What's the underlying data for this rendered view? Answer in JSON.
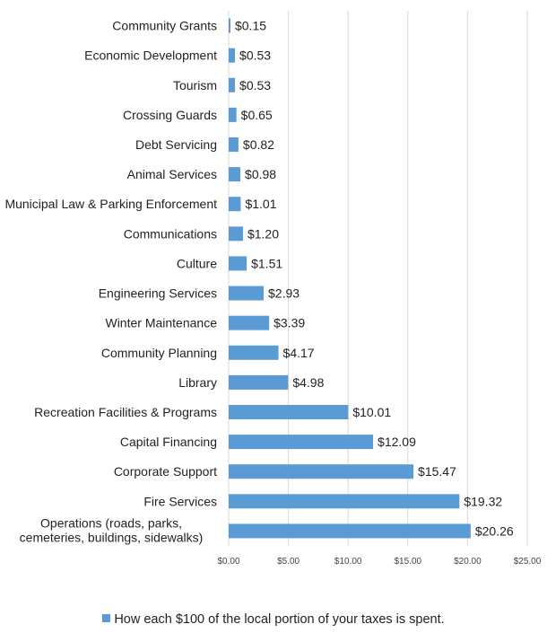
{
  "chart_data": {
    "type": "bar",
    "orientation": "horizontal",
    "categories": [
      "Community Grants",
      "Economic Development",
      "Tourism",
      "Crossing Guards",
      "Debt Servicing",
      "Animal Services",
      "Municipal Law & Parking Enforcement",
      "Communications",
      "Culture",
      "Engineering Services",
      "Winter Maintenance",
      "Community Planning",
      "Library",
      "Recreation Facilities & Programs",
      "Capital Financing",
      "Corporate Support",
      "Fire Services",
      "Operations (roads, parks, cemeteries, buildings, sidewalks)"
    ],
    "series": [
      {
        "name": "How each $100 of the local portion of your taxes is spent.",
        "values": [
          0.15,
          0.53,
          0.53,
          0.65,
          0.82,
          0.98,
          1.01,
          1.2,
          1.51,
          2.93,
          3.39,
          4.17,
          4.98,
          10.01,
          12.09,
          15.47,
          19.32,
          20.26
        ],
        "data_labels": [
          "$0.15",
          "$0.53",
          "$0.53",
          "$0.65",
          "$0.82",
          "$0.98",
          "$1.01",
          "$1.20",
          "$1.51",
          "$2.93",
          "$3.39",
          "$4.17",
          "$4.98",
          "$10.01",
          "$12.09",
          "$15.47",
          "$19.32",
          "$20.26"
        ]
      }
    ],
    "xlim": [
      0,
      25
    ],
    "x_ticks": [
      0,
      5,
      10,
      15,
      20,
      25
    ],
    "x_tick_labels": [
      "$0.00",
      "$5.00",
      "$10.00",
      "$15.00",
      "$20.00",
      "$25.00"
    ],
    "grid": "vertical",
    "legend_position": "bottom",
    "bar_color": "#5b9bd5",
    "grid_color": "#d9d9d9"
  }
}
